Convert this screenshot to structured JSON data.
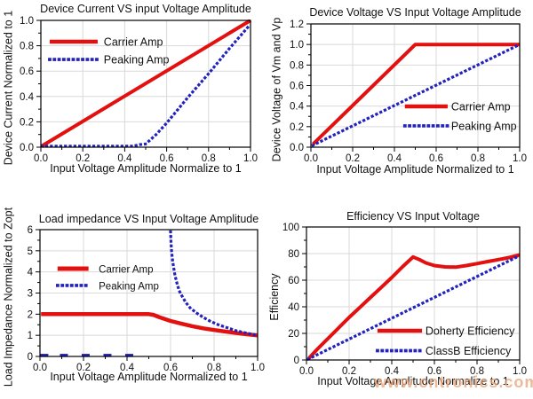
{
  "watermark": {
    "text": "www.cntronics.com",
    "color": "#eaa87c"
  },
  "palette": {
    "carrier_red": "#e31010",
    "peaking_blue": "#2323bb",
    "grid": "#d9d9d9",
    "axis": "#000000"
  },
  "chart_data": [
    {
      "type": "line",
      "title": "Device Current VS input Voltage Amplitude",
      "xlabel": "Input Voltage Amplitude Normalize to 1",
      "ylabel": "Device Current Normalized to 1",
      "xlim": [
        0,
        1
      ],
      "ylim": [
        0,
        1
      ],
      "grid": true,
      "xticks": [
        0,
        0.2,
        0.4,
        0.6,
        0.8,
        1.0
      ],
      "xtick_labels": [
        "0.0",
        "0.2",
        "0.4",
        "0.6",
        "0.8",
        "1.0"
      ],
      "yticks": [
        0,
        0.2,
        0.4,
        0.6,
        0.8,
        1.0
      ],
      "ytick_labels": [
        "0.0",
        "0.2",
        "0.4",
        "0.6",
        "0.8",
        "1.0"
      ],
      "legend": {
        "pos": "upper-left",
        "sample_x": [
          0.042,
          0.271
        ],
        "text_x": 0.3,
        "rows_y": [
          0.168,
          0.308
        ]
      },
      "series": [
        {
          "name": "Carrier Amp",
          "color": "#e31010",
          "style": "solid",
          "width": 4,
          "points": [
            [
              0.005,
              0.01
            ],
            [
              1.0,
              1.0
            ]
          ]
        },
        {
          "name": "Peaking Amp",
          "color": "#2323bb",
          "style": "dotted",
          "width": 3.2,
          "points": [
            [
              0.005,
              0.008
            ],
            [
              0.44,
              0.008
            ],
            [
              0.47,
              0.02
            ],
            [
              0.5,
              0.025
            ],
            [
              0.55,
              0.1
            ],
            [
              0.6,
              0.19
            ],
            [
              0.7,
              0.39
            ],
            [
              0.8,
              0.58
            ],
            [
              0.9,
              0.78
            ],
            [
              1.0,
              0.97
            ]
          ]
        }
      ]
    },
    {
      "type": "line",
      "title": "Device Voltage VS Input Voltage Amplitude",
      "xlabel": "Input Voltage Amplitude Normalized to 1",
      "ylabel": "Device Voltage of Vm and Vp",
      "xlim": [
        0,
        1
      ],
      "ylim": [
        0,
        1.2
      ],
      "grid": true,
      "xticks": [
        0,
        0.2,
        0.4,
        0.6,
        0.8,
        1.0
      ],
      "xtick_labels": [
        "0.0",
        "0.2",
        "0.4",
        "0.6",
        "0.8",
        "1.0"
      ],
      "yticks": [
        0,
        0.2,
        0.4,
        0.6,
        0.8,
        1.0,
        1.2
      ],
      "ytick_labels": [
        "0.0",
        "0.2",
        "0.4",
        "0.6",
        "0.8",
        "1.0",
        "1.2"
      ],
      "legend": {
        "pos": "center-right",
        "sample_x": [
          0.45,
          0.655
        ],
        "text_x": 0.672,
        "rows_y": [
          0.669,
          0.827
        ]
      },
      "series": [
        {
          "name": "Carrier Amp",
          "color": "#e31010",
          "style": "solid",
          "width": 4,
          "points": [
            [
              0.01,
              0.03
            ],
            [
              0.5,
              1.0
            ],
            [
              1.0,
              1.0
            ]
          ]
        },
        {
          "name": "Peaking Amp",
          "color": "#2323bb",
          "style": "dotted",
          "width": 3.2,
          "points": [
            [
              0.01,
              0.02
            ],
            [
              1.0,
              1.0
            ]
          ]
        }
      ]
    },
    {
      "type": "line",
      "title": "Load impedance VS Input Voltage Amplitude",
      "xlabel": "Input Voltage Amplitude Normalized to 1",
      "ylabel": "Load Impedance Normalized to Zopt",
      "xlim": [
        0,
        1
      ],
      "ylim": [
        0,
        6
      ],
      "grid": true,
      "xticks": [
        0,
        0.2,
        0.4,
        0.6,
        0.8,
        1.0
      ],
      "xtick_labels": [
        "0.0",
        "0.2",
        "0.4",
        "0.6",
        "0.8",
        "1.0"
      ],
      "yticks": [
        0,
        1,
        2,
        3,
        4,
        5,
        6
      ],
      "ytick_labels": [
        "0",
        "1",
        "2",
        "3",
        "4",
        "5",
        "6"
      ],
      "legend": {
        "pos": "center-left",
        "sample_x": [
          0.081,
          0.223
        ],
        "text_x": 0.27,
        "rows_y": [
          0.308,
          0.44
        ]
      },
      "series": [
        {
          "name": "Carrier Amp",
          "color": "#e31010",
          "style": "solid",
          "width": 4.5,
          "points": [
            [
              0.005,
              2.0
            ],
            [
              0.5,
              2.0
            ],
            [
              0.52,
              1.97
            ],
            [
              0.55,
              1.85
            ],
            [
              0.6,
              1.68
            ],
            [
              0.65,
              1.55
            ],
            [
              0.7,
              1.43
            ],
            [
              0.75,
              1.33
            ],
            [
              0.8,
              1.25
            ],
            [
              0.85,
              1.18
            ],
            [
              0.9,
              1.11
            ],
            [
              0.95,
              1.05
            ],
            [
              1.0,
              1.0
            ]
          ]
        },
        {
          "name": "Peaking Amp",
          "color": "#2323bb",
          "style": "dotted",
          "width": 3.2,
          "points": [
            [
              0.6,
              5.9
            ],
            [
              0.602,
              5.4
            ],
            [
              0.605,
              4.95
            ],
            [
              0.61,
              4.5
            ],
            [
              0.615,
              4.15
            ],
            [
              0.62,
              3.85
            ],
            [
              0.63,
              3.45
            ],
            [
              0.64,
              3.1
            ],
            [
              0.65,
              2.9
            ],
            [
              0.67,
              2.55
            ],
            [
              0.69,
              2.3
            ],
            [
              0.72,
              2.05
            ],
            [
              0.75,
              1.85
            ],
            [
              0.78,
              1.68
            ],
            [
              0.82,
              1.5
            ],
            [
              0.86,
              1.36
            ],
            [
              0.9,
              1.22
            ],
            [
              0.95,
              1.1
            ],
            [
              1.0,
              1.0
            ]
          ]
        },
        {
          "name": "",
          "in_legend": false,
          "color": "#2323bb",
          "style": "dashes",
          "width": 3.5,
          "points": [
            [
              0.02,
              0.05
            ],
            [
              0.11,
              0.05
            ],
            [
              0.21,
              0.05
            ],
            [
              0.31,
              0.05
            ],
            [
              0.41,
              0.05
            ]
          ]
        }
      ]
    },
    {
      "type": "line",
      "title": "Efficiency VS Input Voltage",
      "xlabel": "Input Voltage Amplitude Normalize to 1",
      "ylabel": "Efficiency",
      "xlim": [
        0,
        1
      ],
      "ylim": [
        0,
        100
      ],
      "grid": true,
      "xticks": [
        0,
        0.2,
        0.4,
        0.6,
        0.8,
        1.0
      ],
      "xtick_labels": [
        "0.0",
        "0.2",
        "0.4",
        "0.6",
        "0.8",
        "1.0"
      ],
      "yticks": [
        0,
        20,
        40,
        60,
        80,
        100
      ],
      "ytick_labels": [
        "0",
        "20",
        "40",
        "60",
        "80",
        "100"
      ],
      "legend": {
        "pos": "lower-right",
        "sample_x": [
          0.333,
          0.542
        ],
        "text_x": 0.558,
        "rows_y": [
          0.78,
          0.93
        ]
      },
      "series": [
        {
          "name": "Doherty Efficiency",
          "color": "#e31010",
          "style": "solid",
          "width": 4,
          "points": [
            [
              0.01,
              1
            ],
            [
              0.05,
              8
            ],
            [
              0.1,
              16
            ],
            [
              0.15,
              24
            ],
            [
              0.2,
              32
            ],
            [
              0.25,
              39.5
            ],
            [
              0.3,
              47
            ],
            [
              0.35,
              54.5
            ],
            [
              0.4,
              62
            ],
            [
              0.45,
              70
            ],
            [
              0.5,
              77.5
            ],
            [
              0.53,
              75.5
            ],
            [
              0.56,
              73
            ],
            [
              0.6,
              71
            ],
            [
              0.65,
              70
            ],
            [
              0.7,
              69.8
            ],
            [
              0.75,
              71
            ],
            [
              0.8,
              72.5
            ],
            [
              0.85,
              74
            ],
            [
              0.9,
              75.5
            ],
            [
              0.95,
              77
            ],
            [
              1.0,
              79
            ]
          ]
        },
        {
          "name": "ClassB Efficiency",
          "color": "#2323bb",
          "style": "dotted",
          "width": 3.2,
          "points": [
            [
              0.01,
              0.8
            ],
            [
              1.0,
              78.5
            ]
          ]
        }
      ]
    }
  ]
}
